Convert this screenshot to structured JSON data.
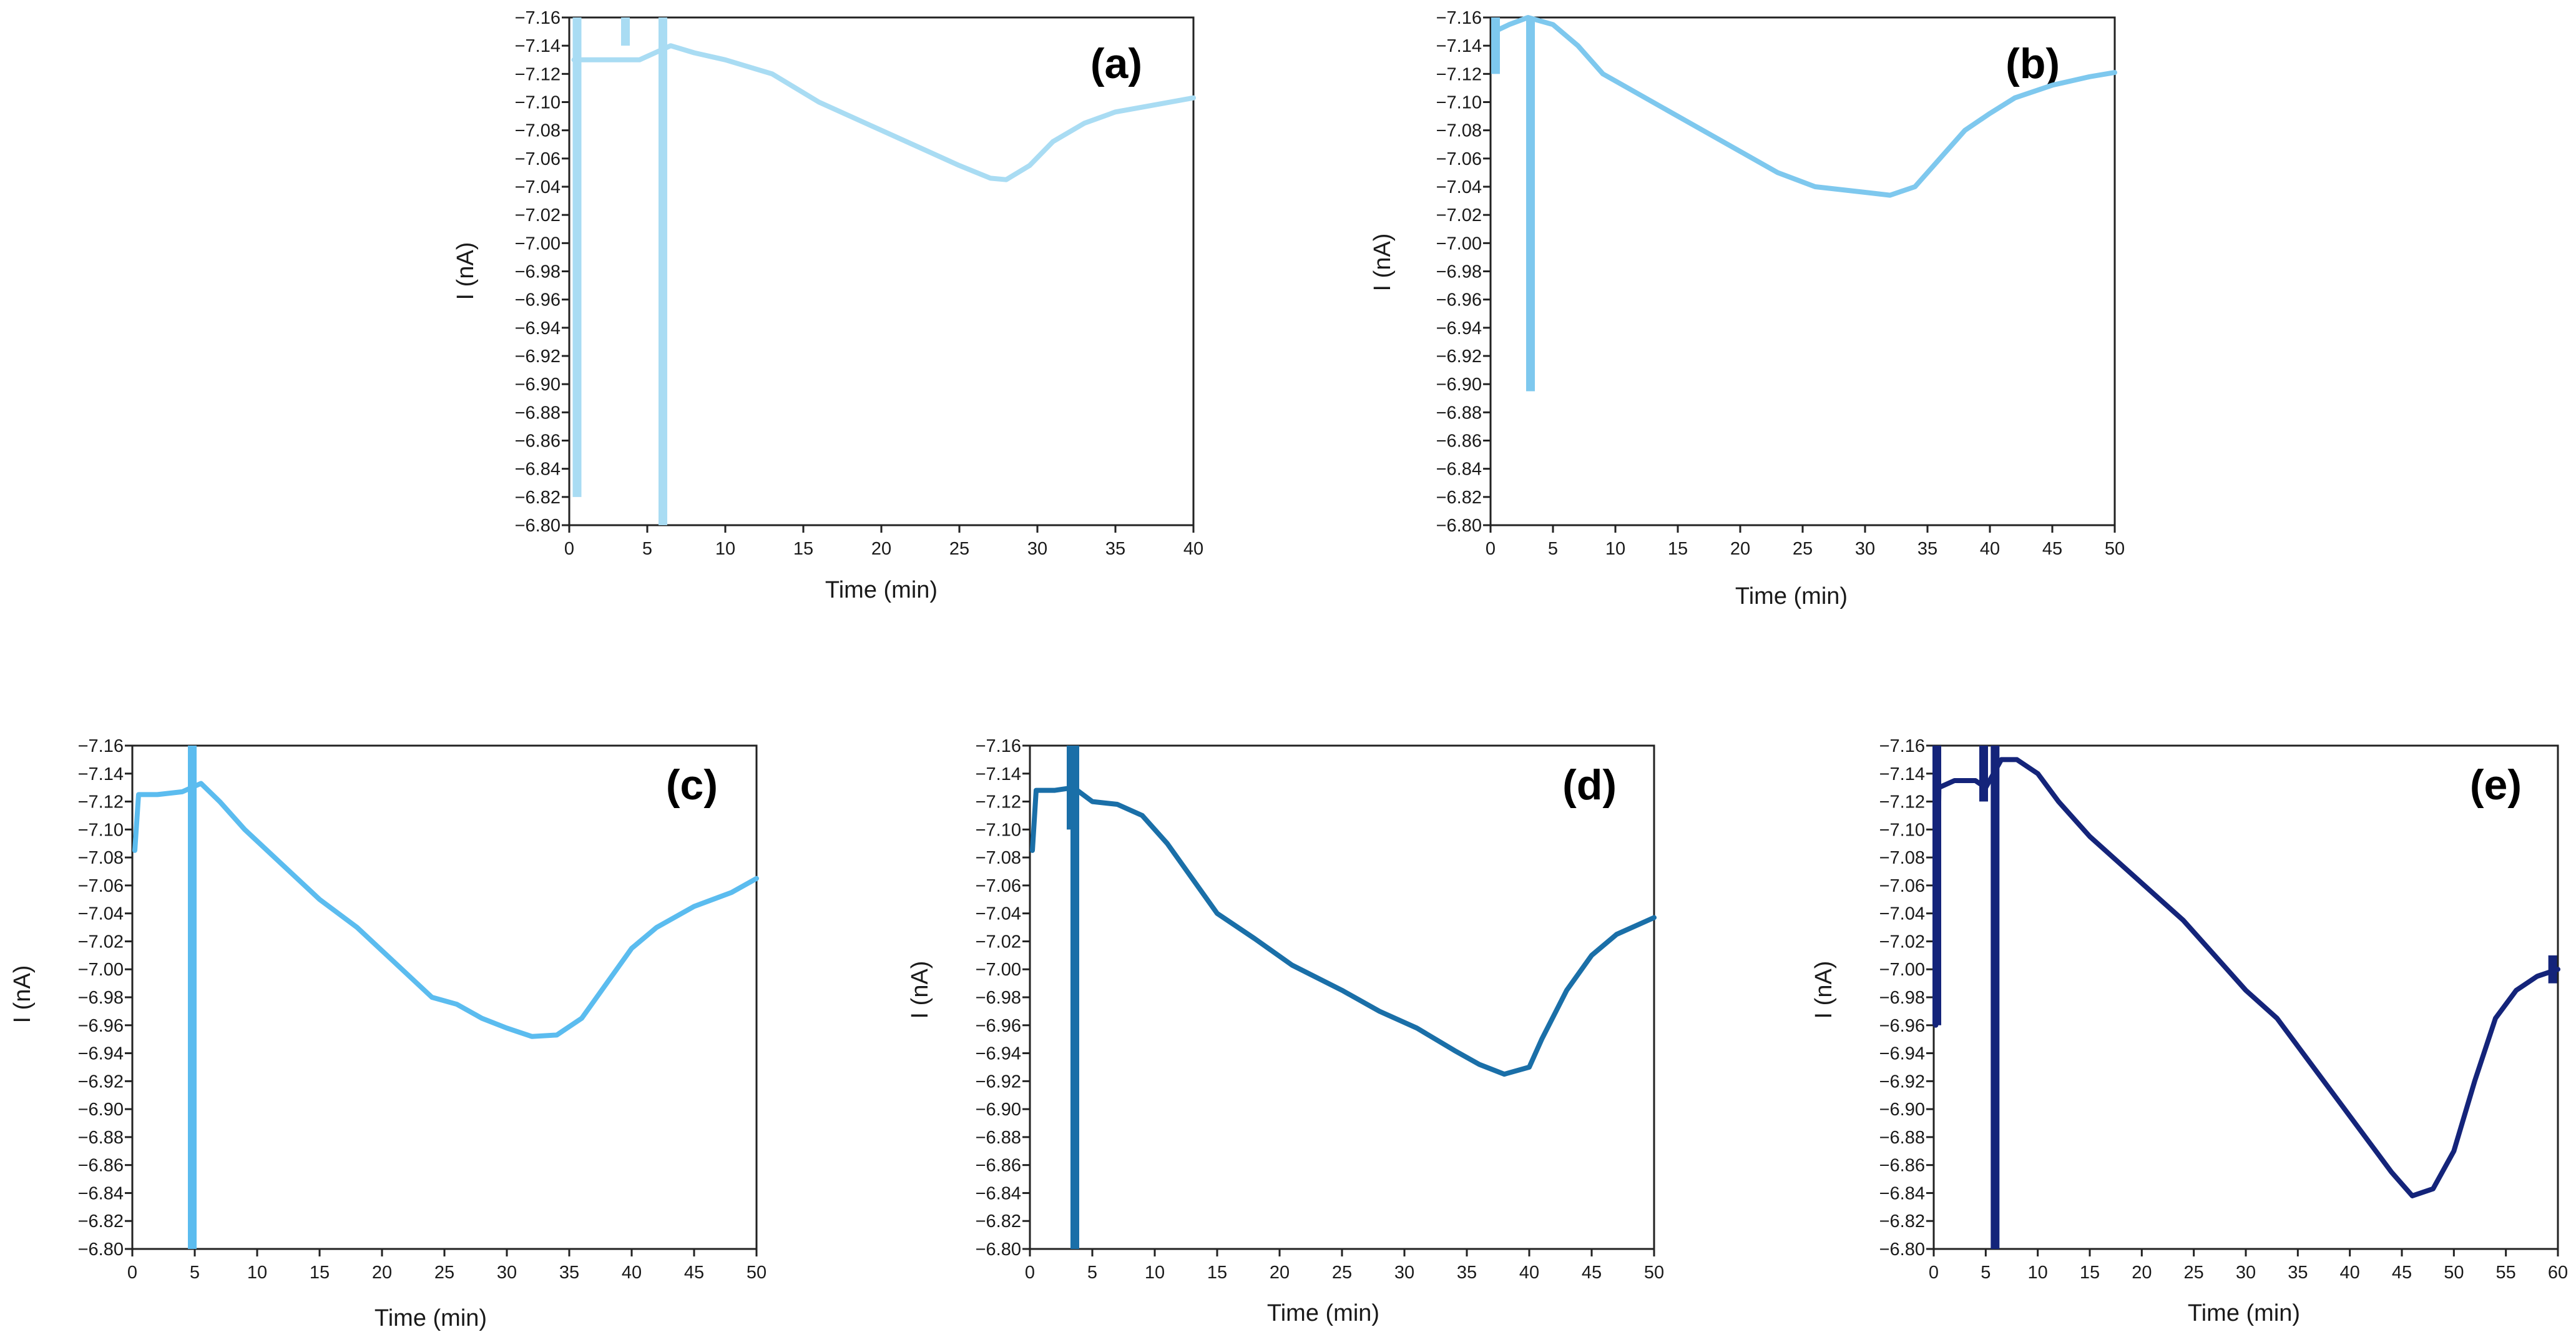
{
  "chart_data": [
    {
      "type": "line",
      "label": "(a)",
      "xlabel": "Time (min)",
      "ylabel": "I (nA)",
      "xlim": [
        0,
        40
      ],
      "ylim": [
        -6.8,
        -7.16
      ],
      "x_ticks": [
        0,
        5,
        10,
        15,
        20,
        25,
        30,
        35,
        40
      ],
      "y_ticks": [
        -7.16,
        -7.14,
        -7.12,
        -7.1,
        -7.08,
        -7.06,
        -7.04,
        -7.02,
        -7.0,
        -6.98,
        -6.96,
        -6.94,
        -6.92,
        -6.9,
        -6.88,
        -6.86,
        -6.84,
        -6.82,
        -6.8
      ],
      "color": "#a9dcf3",
      "series": [
        {
          "name": "I",
          "points": [
            [
              0.3,
              -7.13
            ],
            [
              1.5,
              -7.13
            ],
            [
              3.0,
              -7.13
            ],
            [
              4.5,
              -7.13
            ],
            [
              5.5,
              -7.135
            ],
            [
              6.5,
              -7.14
            ],
            [
              8,
              -7.135
            ],
            [
              10,
              -7.13
            ],
            [
              13,
              -7.12
            ],
            [
              16,
              -7.1
            ],
            [
              19,
              -7.085
            ],
            [
              22,
              -7.07
            ],
            [
              25,
              -7.055
            ],
            [
              27,
              -7.046
            ],
            [
              28,
              -7.045
            ],
            [
              29.5,
              -7.055
            ],
            [
              31,
              -7.072
            ],
            [
              33,
              -7.085
            ],
            [
              35,
              -7.093
            ],
            [
              37,
              -7.097
            ],
            [
              40,
              -7.103
            ]
          ],
          "spikes": [
            {
              "x": 0.5,
              "from": -7.16,
              "to": -6.82
            },
            {
              "x": 3.6,
              "from": -7.16,
              "to": -7.14
            },
            {
              "x": 6.0,
              "from": -7.16,
              "to": -6.8
            }
          ]
        }
      ]
    },
    {
      "type": "line",
      "label": "(b)",
      "xlabel": "Time (min)",
      "ylabel": "I (nA)",
      "xlim": [
        0,
        50
      ],
      "ylim": [
        -6.8,
        -7.16
      ],
      "x_ticks": [
        0,
        5,
        10,
        15,
        20,
        25,
        30,
        35,
        40,
        45,
        50
      ],
      "y_ticks": [
        -7.16,
        -7.14,
        -7.12,
        -7.1,
        -7.08,
        -7.06,
        -7.04,
        -7.02,
        -7.0,
        -6.98,
        -6.96,
        -6.94,
        -6.92,
        -6.9,
        -6.88,
        -6.86,
        -6.84,
        -6.82,
        -6.8
      ],
      "color": "#7ec8ee",
      "series": [
        {
          "name": "I",
          "points": [
            [
              0.3,
              -7.15
            ],
            [
              1.5,
              -7.155
            ],
            [
              3,
              -7.16
            ],
            [
              5,
              -7.155
            ],
            [
              7,
              -7.14
            ],
            [
              9,
              -7.12
            ],
            [
              12,
              -7.105
            ],
            [
              16,
              -7.085
            ],
            [
              20,
              -7.065
            ],
            [
              23,
              -7.05
            ],
            [
              26,
              -7.04
            ],
            [
              28,
              -7.038
            ],
            [
              30,
              -7.036
            ],
            [
              32,
              -7.034
            ],
            [
              34,
              -7.04
            ],
            [
              36,
              -7.06
            ],
            [
              38,
              -7.08
            ],
            [
              40,
              -7.092
            ],
            [
              42,
              -7.103
            ],
            [
              45,
              -7.112
            ],
            [
              48,
              -7.118
            ],
            [
              50,
              -7.121
            ]
          ],
          "spikes": [
            {
              "x": 3.2,
              "from": -7.16,
              "to": -6.895
            },
            {
              "x": 0.4,
              "from": -7.12,
              "to": -7.16
            }
          ]
        }
      ]
    },
    {
      "type": "line",
      "label": "(c)",
      "xlabel": "Time (min)",
      "ylabel": "I (nA)",
      "xlim": [
        0,
        50
      ],
      "ylim": [
        -6.8,
        -7.16
      ],
      "x_ticks": [
        0,
        5,
        10,
        15,
        20,
        25,
        30,
        35,
        40,
        45,
        50
      ],
      "y_ticks": [
        -7.16,
        -7.14,
        -7.12,
        -7.1,
        -7.08,
        -7.06,
        -7.04,
        -7.02,
        -7.0,
        -6.98,
        -6.96,
        -6.94,
        -6.92,
        -6.9,
        -6.88,
        -6.86,
        -6.84,
        -6.82,
        -6.8
      ],
      "color": "#5bbcef",
      "series": [
        {
          "name": "I",
          "points": [
            [
              0.2,
              -7.085
            ],
            [
              0.5,
              -7.125
            ],
            [
              2,
              -7.125
            ],
            [
              4,
              -7.127
            ],
            [
              5.5,
              -7.133
            ],
            [
              7,
              -7.12
            ],
            [
              9,
              -7.1
            ],
            [
              12,
              -7.075
            ],
            [
              15,
              -7.05
            ],
            [
              18,
              -7.03
            ],
            [
              21,
              -7.005
            ],
            [
              24,
              -6.98
            ],
            [
              26,
              -6.975
            ],
            [
              28,
              -6.965
            ],
            [
              30,
              -6.958
            ],
            [
              32,
              -6.952
            ],
            [
              34,
              -6.953
            ],
            [
              36,
              -6.965
            ],
            [
              38,
              -6.99
            ],
            [
              40,
              -7.015
            ],
            [
              42,
              -7.03
            ],
            [
              45,
              -7.045
            ],
            [
              48,
              -7.055
            ],
            [
              50,
              -7.065
            ]
          ],
          "spikes": [
            {
              "x": 4.8,
              "from": -7.16,
              "to": -6.8
            }
          ]
        }
      ]
    },
    {
      "type": "line",
      "label": "(d)",
      "xlabel": "Time (min)",
      "ylabel": "I (nA)",
      "xlim": [
        0,
        50
      ],
      "ylim": [
        -6.8,
        -7.16
      ],
      "x_ticks": [
        0,
        5,
        10,
        15,
        20,
        25,
        30,
        35,
        40,
        45,
        50
      ],
      "y_ticks": [
        -7.16,
        -7.14,
        -7.12,
        -7.1,
        -7.08,
        -7.06,
        -7.04,
        -7.02,
        -7.0,
        -6.98,
        -6.96,
        -6.94,
        -6.92,
        -6.9,
        -6.88,
        -6.86,
        -6.84,
        -6.82,
        -6.8
      ],
      "color": "#1a6fa8",
      "series": [
        {
          "name": "I",
          "points": [
            [
              0.2,
              -7.085
            ],
            [
              0.5,
              -7.128
            ],
            [
              2,
              -7.128
            ],
            [
              3.5,
              -7.13
            ],
            [
              5,
              -7.12
            ],
            [
              7,
              -7.118
            ],
            [
              9,
              -7.11
            ],
            [
              11,
              -7.09
            ],
            [
              13,
              -7.065
            ],
            [
              15,
              -7.04
            ],
            [
              18,
              -7.022
            ],
            [
              21,
              -7.003
            ],
            [
              25,
              -6.985
            ],
            [
              28,
              -6.97
            ],
            [
              31,
              -6.958
            ],
            [
              34,
              -6.942
            ],
            [
              36,
              -6.932
            ],
            [
              38,
              -6.925
            ],
            [
              40,
              -6.93
            ],
            [
              41,
              -6.95
            ],
            [
              43,
              -6.985
            ],
            [
              45,
              -7.01
            ],
            [
              47,
              -7.025
            ],
            [
              50,
              -7.037
            ]
          ],
          "spikes": [
            {
              "x": 3.6,
              "from": -7.16,
              "to": -6.8
            },
            {
              "x": 3.3,
              "from": -7.16,
              "to": -7.1
            }
          ]
        }
      ]
    },
    {
      "type": "line",
      "label": "(e)",
      "xlabel": "Time (min)",
      "ylabel": "I (nA)",
      "xlim": [
        0,
        60
      ],
      "ylim": [
        -6.8,
        -7.16
      ],
      "x_ticks": [
        0,
        5,
        10,
        15,
        20,
        25,
        30,
        35,
        40,
        45,
        50,
        55,
        60
      ],
      "y_ticks": [
        -7.16,
        -7.14,
        -7.12,
        -7.1,
        -7.08,
        -7.06,
        -7.04,
        -7.02,
        -7.0,
        -6.98,
        -6.96,
        -6.94,
        -6.92,
        -6.9,
        -6.88,
        -6.86,
        -6.84,
        -6.82,
        -6.8
      ],
      "color": "#14247a",
      "series": [
        {
          "name": "I",
          "points": [
            [
              0.2,
              -6.96
            ],
            [
              0.5,
              -7.13
            ],
            [
              2,
              -7.135
            ],
            [
              4,
              -7.135
            ],
            [
              5,
              -7.13
            ],
            [
              6.5,
              -7.15
            ],
            [
              8,
              -7.15
            ],
            [
              10,
              -7.14
            ],
            [
              12,
              -7.12
            ],
            [
              15,
              -7.095
            ],
            [
              18,
              -7.075
            ],
            [
              21,
              -7.055
            ],
            [
              24,
              -7.035
            ],
            [
              27,
              -7.01
            ],
            [
              30,
              -6.985
            ],
            [
              33,
              -6.965
            ],
            [
              36,
              -6.935
            ],
            [
              39,
              -6.905
            ],
            [
              42,
              -6.875
            ],
            [
              44,
              -6.855
            ],
            [
              46,
              -6.838
            ],
            [
              48,
              -6.843
            ],
            [
              50,
              -6.87
            ],
            [
              52,
              -6.92
            ],
            [
              54,
              -6.965
            ],
            [
              56,
              -6.985
            ],
            [
              58,
              -6.995
            ],
            [
              60,
              -7.0
            ]
          ],
          "spikes": [
            {
              "x": 0.3,
              "from": -7.16,
              "to": -6.96
            },
            {
              "x": 5.9,
              "from": -7.16,
              "to": -6.8
            },
            {
              "x": 4.8,
              "from": -7.16,
              "to": -7.12
            },
            {
              "x": 59.5,
              "from": -7.01,
              "to": -6.99
            }
          ]
        }
      ]
    }
  ]
}
